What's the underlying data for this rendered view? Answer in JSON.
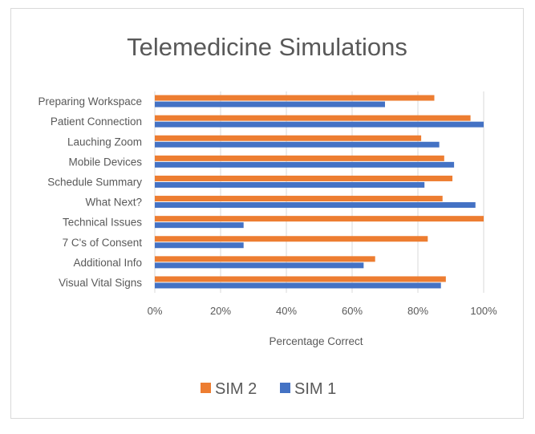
{
  "chart_data": {
    "type": "bar",
    "orientation": "horizontal",
    "title": "Telemedicine Simulations",
    "xlabel": "Percentage Correct",
    "ylabel": "",
    "xlim": [
      0,
      1
    ],
    "x_ticks": [
      "0%",
      "20%",
      "40%",
      "60%",
      "80%",
      "100%"
    ],
    "grid": true,
    "legend_position": "bottom",
    "categories": [
      "Preparing Workspace",
      "Patient Connection",
      "Lauching Zoom",
      "Mobile Devices",
      "Schedule Summary",
      "What Next?",
      "Technical Issues",
      "7 C's of Consent",
      "Additional Info",
      "Visual Vital Signs"
    ],
    "series": [
      {
        "name": "SIM 2",
        "color": "#ed7d31",
        "values": [
          0.85,
          0.96,
          0.81,
          0.88,
          0.905,
          0.875,
          1.0,
          0.83,
          0.67,
          0.885
        ]
      },
      {
        "name": "SIM 1",
        "color": "#4472c4",
        "values": [
          0.7,
          1.0,
          0.865,
          0.91,
          0.82,
          0.975,
          0.27,
          0.27,
          0.635,
          0.87
        ]
      }
    ]
  }
}
